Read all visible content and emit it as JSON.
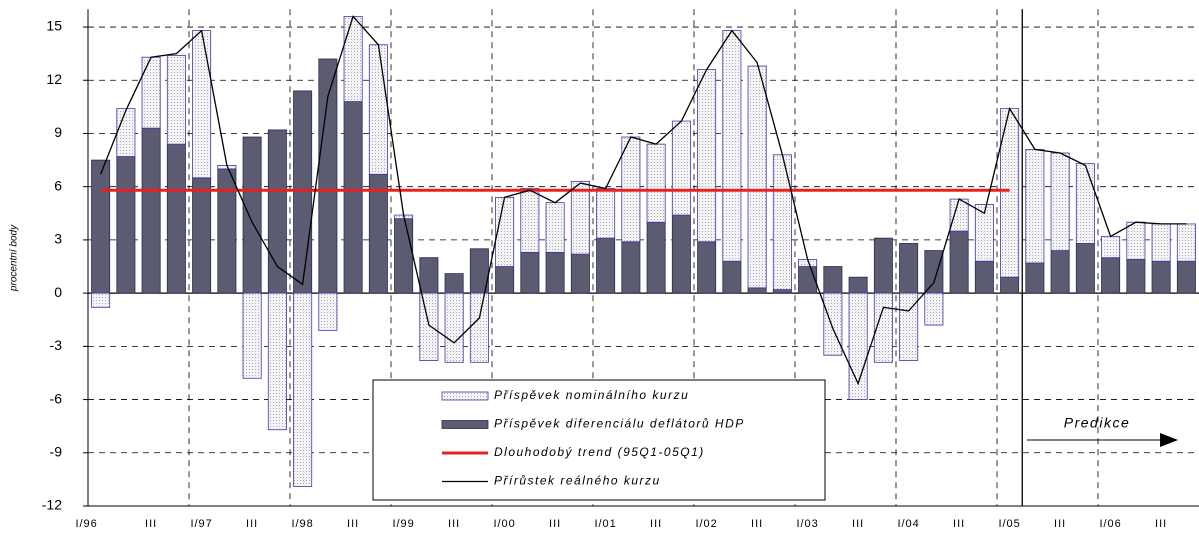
{
  "chart_data": {
    "type": "bar",
    "y_axis_label": "procentní body",
    "categories": [
      "I/96",
      null,
      "III",
      null,
      "I/97",
      null,
      "III",
      null,
      "I/98",
      null,
      "III",
      null,
      "I/99",
      null,
      "III",
      null,
      "I/00",
      null,
      "III",
      null,
      "I/01",
      null,
      "III",
      null,
      "I/02",
      null,
      "III",
      null,
      "I/03",
      null,
      "III",
      null,
      "I/04",
      null,
      "III",
      null,
      "I/05",
      null,
      "III",
      null,
      "I/06",
      null,
      "III",
      null
    ],
    "series": [
      {
        "name": "Příspěvek diferenciálu deflátorů HDP",
        "type": "bar",
        "color": "#5b5b72",
        "edge": "#2a2a55",
        "values": [
          7.5,
          7.7,
          9.3,
          8.4,
          6.5,
          7.0,
          8.8,
          9.2,
          11.4,
          13.2,
          10.8,
          6.7,
          4.2,
          2.0,
          1.1,
          2.5,
          1.5,
          2.3,
          2.3,
          2.2,
          3.1,
          2.9,
          4.0,
          4.4,
          2.9,
          1.8,
          0.3,
          0.2,
          1.5,
          1.5,
          0.9,
          3.1,
          2.8,
          2.4,
          3.5,
          1.8,
          0.9,
          1.7,
          2.4,
          2.8,
          2.0,
          1.9,
          1.8,
          1.8
        ]
      },
      {
        "name": "Příspěvek nominálního kurzu",
        "type": "bar",
        "color": "#e6e6ea",
        "edge": "#3a3aa8",
        "values": [
          -0.8,
          2.7,
          4.0,
          5.0,
          8.3,
          0.2,
          -4.8,
          -7.7,
          -10.9,
          -2.1,
          4.8,
          7.3,
          0.2,
          -3.8,
          -3.9,
          -3.9,
          3.9,
          3.6,
          2.8,
          4.1,
          2.8,
          5.9,
          4.4,
          5.3,
          9.7,
          13.0,
          12.5,
          7.6,
          0.4,
          -3.5,
          -6.0,
          -3.9,
          -3.8,
          -1.8,
          1.8,
          3.2,
          9.5,
          6.4,
          5.5,
          4.5,
          1.2,
          2.1,
          2.1,
          2.1
        ]
      },
      {
        "name": "Dlouhodobý trend (95Q1-05Q1)",
        "type": "line",
        "color": "#e8201e",
        "values": [
          5.8,
          5.8,
          5.8,
          5.8,
          5.8,
          5.8,
          5.8,
          5.8,
          5.8,
          5.8,
          5.8,
          5.8,
          5.8,
          5.8,
          5.8,
          5.8,
          5.8,
          5.8,
          5.8,
          5.8,
          5.8,
          5.8,
          5.8,
          5.8,
          5.8,
          5.8,
          5.8,
          5.8,
          5.8,
          5.8,
          5.8,
          5.8,
          5.8,
          5.8,
          5.8,
          5.8,
          5.8,
          null,
          null,
          null,
          null,
          null,
          null,
          null
        ]
      },
      {
        "name": "Přírůstek reálného kurzu",
        "type": "line",
        "color": "#000000",
        "values": [
          6.7,
          10.3,
          13.3,
          13.5,
          14.8,
          7.2,
          4.0,
          1.5,
          0.5,
          11.1,
          15.6,
          14.0,
          4.4,
          -1.8,
          -2.8,
          -1.4,
          5.4,
          5.8,
          5.1,
          6.2,
          5.9,
          8.8,
          8.4,
          9.7,
          12.6,
          14.8,
          13.0,
          7.8,
          1.9,
          -2.0,
          -5.1,
          -0.8,
          -1.0,
          0.6,
          5.3,
          4.5,
          10.4,
          8.1,
          7.9,
          7.2,
          3.2,
          4.0,
          3.9,
          3.9
        ]
      }
    ],
    "annotation": "Predikce",
    "ylim": [
      -12,
      16
    ],
    "yticks": [
      -12,
      -9,
      -6,
      -3,
      0,
      3,
      6,
      9,
      12,
      15
    ],
    "grid": true
  }
}
